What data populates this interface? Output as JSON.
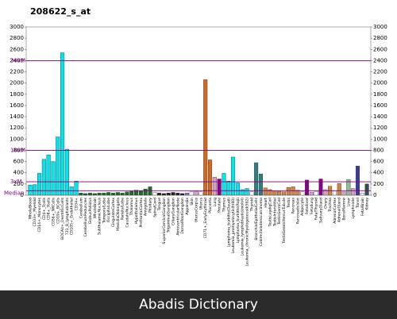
{
  "chart_data": {
    "type": "bar",
    "title": "208622_s_at",
    "categories": [
      "WholeBlood",
      "CD33+_Myeloid",
      "CD14+_Monocytes",
      "CD4+_Tcells",
      "CD8+_Tcells",
      "CD56+_NKCells",
      "CD19+_BCells",
      "BDCA4+_DentriticCells",
      "721_B_lymphoblasts",
      "CD105+_Endothelial",
      "CD34+",
      "Cerebellum",
      "CerebellumPeduncles",
      "GlobusPallidus",
      "WholeBrain",
      "SubthalamicNucleus",
      "TemporalLobe",
      "OccipitalLobe",
      "CingulateCortex",
      "MedullaOblongata",
      "ParietalLobe",
      "CaudateNucleus",
      "Thalamus",
      "Hypothalamus",
      "PrefrontalCortex",
      "Amygdala",
      "Pituitary",
      "SpinalCord",
      "Tongue",
      "SuperiorCervicalGanglion",
      "TrigeminalGanglion",
      "CiliaryGanglion",
      "AtrioventricularNode",
      "DorsalRootGanglion",
      "Appendix",
      "Skin",
      "UterusCorpus",
      "Uterus",
      "CD71+_EarlyErythroid",
      "Placenta",
      "Lung",
      "Prostate",
      "Thymus",
      "Lymphoma_burkitts(Daudi)",
      "Leukemia_promyelocytic(hl60)",
      "Lymphoma_burkitts(Raji)",
      "Leukemia_lymphoblastic(molt4)",
      "Leukemia_chronicMyelogenous(k562)",
      "Thyroid",
      "BronchialEpithelialCells",
      "Colorectaladenocarcinoma",
      "Heart",
      "TestisLeydigCell",
      "TestisInterstitial",
      "TestisGermCell",
      "TestisSeminiferousTubule",
      "Testis",
      "Pancreas",
      "PancreaticIslet",
      "Adipocyte",
      "Fetalliver",
      "Fetallung",
      "FetalThyroid",
      "SalivaryGland",
      "Ovary",
      "Trachea",
      "AdrenalCortex",
      "AdrenalGland",
      "BoneMarrow",
      "Liver",
      "Lymphnode",
      "Tonsil",
      "FetalBrain",
      "Kidney"
    ],
    "values": [
      180,
      190,
      390,
      640,
      720,
      600,
      1040,
      2540,
      820,
      150,
      250,
      40,
      30,
      40,
      30,
      40,
      40,
      50,
      40,
      50,
      40,
      60,
      70,
      90,
      80,
      110,
      150,
      50,
      40,
      30,
      40,
      50,
      40,
      30,
      40,
      60,
      70,
      60,
      2060,
      630,
      320,
      290,
      390,
      250,
      680,
      220,
      100,
      120,
      60,
      580,
      380,
      130,
      100,
      80,
      70,
      60,
      140,
      150,
      90,
      60,
      270,
      50,
      70,
      290,
      100,
      160,
      80,
      210,
      60,
      280,
      120,
      520,
      40,
      200
    ],
    "colors": [
      "#00e5ee",
      "#00e5ee",
      "#00e5ee",
      "#00e5ee",
      "#00e5ee",
      "#00e5ee",
      "#00e5ee",
      "#00e5ee",
      "#00e5ee",
      "#00e5ee",
      "#00e5ee",
      "#1f6b2a",
      "#1f6b2a",
      "#1f6b2a",
      "#1f6b2a",
      "#1f6b2a",
      "#1f6b2a",
      "#1f6b2a",
      "#1f6b2a",
      "#1f6b2a",
      "#1f6b2a",
      "#1f6b2a",
      "#1f6b2a",
      "#1f6b2a",
      "#1f6b2a",
      "#1f6b2a",
      "#1f6b2a",
      "#ffffff",
      "#222222",
      "#222222",
      "#222222",
      "#222222",
      "#222222",
      "#222222",
      "#9370db",
      "#ffffff",
      "#d8a0c8",
      "#ffffff",
      "#d2691e",
      "#d2691e",
      "#d8a0c8",
      "#8b008b",
      "#00e5ee",
      "#00e5ee",
      "#00e5ee",
      "#00e5ee",
      "#00e5ee",
      "#00e5ee",
      "#ffffff",
      "#2f7f7f",
      "#2f7f7f",
      "#cd853f",
      "#cd853f",
      "#cd853f",
      "#cd853f",
      "#cd853f",
      "#cd853f",
      "#cd853f",
      "#cd853f",
      "#ffffff",
      "#8b008b",
      "#d8a0c8",
      "#ffffff",
      "#8b008b",
      "#d8a0c8",
      "#cd853f",
      "#ffffff",
      "#cd853f",
      "#d8a0c8",
      "#8fbc8f",
      "#d8a0c8",
      "#3c3c9c",
      "#ffffff",
      "#2f4f4f"
    ],
    "ylim": [
      0,
      3000
    ],
    "yticks": [
      0,
      200,
      400,
      600,
      800,
      1000,
      1200,
      1400,
      1600,
      1800,
      2000,
      2200,
      2400,
      2600,
      2800,
      3000
    ],
    "reference_lines": [
      {
        "label": "Median",
        "value": 80
      },
      {
        "label": "3xM",
        "value": 240
      },
      {
        "label": "10xM",
        "value": 800
      },
      {
        "label": "30xM",
        "value": 2400
      }
    ],
    "reference_color": "#800080"
  },
  "footer": "Abadis Dictionary"
}
